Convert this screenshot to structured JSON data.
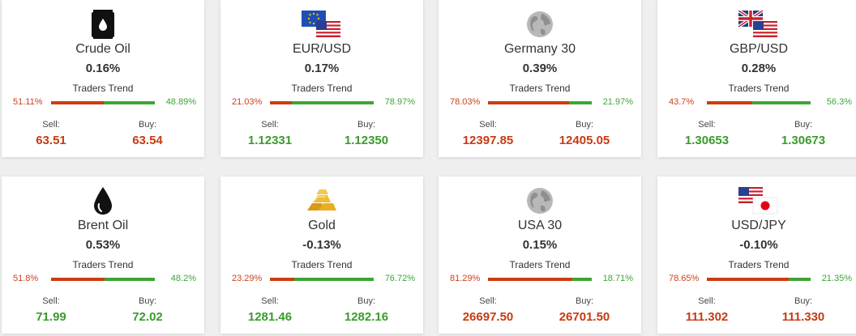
{
  "trend_label": "Traders Trend",
  "sell_label": "Sell:",
  "buy_label": "Buy:",
  "colors": {
    "sell": "#c83a11",
    "buy": "#3b9b2d",
    "bar_sell": "#cc3d10",
    "bar_buy": "#3ea535"
  },
  "instruments": [
    {
      "icon": "oil-barrel-icon",
      "name": "Crude Oil",
      "change": "0.16%",
      "sell_pct": "51.11%",
      "buy_pct": "48.89%",
      "sell_fraction": 0.5111,
      "sell": "63.51",
      "buy": "63.54",
      "price_color": "red"
    },
    {
      "icon": "eu-us-flag-icon",
      "name": "EUR/USD",
      "change": "0.17%",
      "sell_pct": "21.03%",
      "buy_pct": "78.97%",
      "sell_fraction": 0.2103,
      "sell": "1.12331",
      "buy": "1.12350",
      "price_color": "green"
    },
    {
      "icon": "globe-icon",
      "name": "Germany 30",
      "change": "0.39%",
      "sell_pct": "78.03%",
      "buy_pct": "21.97%",
      "sell_fraction": 0.7803,
      "sell": "12397.85",
      "buy": "12405.05",
      "price_color": "red"
    },
    {
      "icon": "uk-us-flag-icon",
      "name": "GBP/USD",
      "change": "0.28%",
      "sell_pct": "43.7%",
      "buy_pct": "56.3%",
      "sell_fraction": 0.437,
      "sell": "1.30653",
      "buy": "1.30673",
      "price_color": "green"
    },
    {
      "icon": "oil-drop-icon",
      "name": "Brent Oil",
      "change": "0.53%",
      "sell_pct": "51.8%",
      "buy_pct": "48.2%",
      "sell_fraction": 0.518,
      "sell": "71.99",
      "buy": "72.02",
      "price_color": "green"
    },
    {
      "icon": "gold-bars-icon",
      "name": "Gold",
      "change": "-0.13%",
      "sell_pct": "23.29%",
      "buy_pct": "76.72%",
      "sell_fraction": 0.2329,
      "sell": "1281.46",
      "buy": "1282.16",
      "price_color": "green"
    },
    {
      "icon": "globe-icon",
      "name": "USA 30",
      "change": "0.15%",
      "sell_pct": "81.29%",
      "buy_pct": "18.71%",
      "sell_fraction": 0.8129,
      "sell": "26697.50",
      "buy": "26701.50",
      "price_color": "red"
    },
    {
      "icon": "us-jp-flag-icon",
      "name": "USD/JPY",
      "change": "-0.10%",
      "sell_pct": "78.65%",
      "buy_pct": "21.35%",
      "sell_fraction": 0.7865,
      "sell": "111.302",
      "buy": "111.330",
      "price_color": "red"
    }
  ]
}
